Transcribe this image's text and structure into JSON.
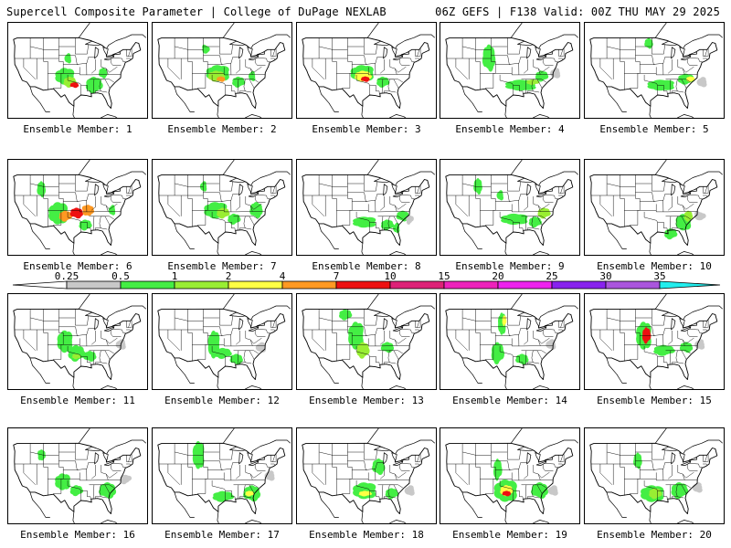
{
  "header": {
    "left": "Supercell Composite Parameter | College of DuPage NEXLAB",
    "right": "06Z GEFS | F138 Valid: 00Z THU MAY 29 2025"
  },
  "colorbar": {
    "levels": [
      "0.25",
      "0.5",
      "1",
      "2",
      "4",
      "7",
      "10",
      "15",
      "20",
      "25",
      "30",
      "35"
    ],
    "colors": [
      "#c8c8c8",
      "#44ee44",
      "#99ee33",
      "#ffff44",
      "#ff9922",
      "#ee1111",
      "#dd2277",
      "#ee22bb",
      "#ee22ee",
      "#8822ee",
      "#aa55dd",
      "#22eeee"
    ]
  },
  "panel_label": "Ensemble Member:",
  "members": [
    {
      "id": "1",
      "caption": "Ensemble Member: 1",
      "blobs": [
        [
          "p",
          -101,
          36,
          5,
          3,
          "#44ee44"
        ],
        [
          "p",
          -99,
          34,
          3,
          2,
          "#99ee33"
        ],
        [
          "p",
          -97,
          33,
          2,
          1,
          "#ee1111"
        ],
        [
          "p",
          -88,
          33,
          4,
          3,
          "#44ee44"
        ],
        [
          "p",
          -84,
          37,
          2,
          2,
          "#44ee44"
        ],
        [
          "s",
          -100,
          42,
          2,
          2,
          "#44ee44"
        ]
      ]
    },
    {
      "id": "2",
      "caption": "Ensemble Member: 2",
      "blobs": [
        [
          "p",
          -97,
          37,
          6,
          3,
          "#44ee44"
        ],
        [
          "p",
          -98,
          36,
          4,
          2,
          "#99ee33"
        ],
        [
          "p",
          -96,
          35,
          2,
          1,
          "#ff9922"
        ],
        [
          "p",
          -88,
          34,
          3,
          2,
          "#44ee44"
        ],
        [
          "s",
          -103,
          45,
          2,
          2,
          "#44ee44"
        ],
        [
          "s",
          -82,
          36,
          2,
          2,
          "#44ee44"
        ]
      ]
    },
    {
      "id": "3",
      "caption": "Ensemble Member: 3",
      "blobs": [
        [
          "p",
          -97,
          37,
          6,
          3,
          "#44ee44"
        ],
        [
          "p",
          -97,
          36,
          4,
          2,
          "#ffff44"
        ],
        [
          "p",
          -96,
          35,
          2,
          1,
          "#ee1111"
        ],
        [
          "p",
          -88,
          34,
          3,
          2,
          "#44ee44"
        ]
      ]
    },
    {
      "id": "4",
      "caption": "Ensemble Member: 4",
      "blobs": [
        [
          "p",
          -90,
          33,
          8,
          2,
          "#44ee44"
        ],
        [
          "p",
          -85,
          34,
          3,
          1,
          "#99ee33"
        ],
        [
          "p",
          -81,
          36,
          3,
          2,
          "#44ee44"
        ],
        [
          "p",
          -105,
          42,
          3,
          5,
          "#44ee44"
        ],
        [
          "s",
          -75,
          37,
          3,
          2,
          "#c8c8c8"
        ]
      ]
    },
    {
      "id": "5",
      "caption": "Ensemble Member: 5",
      "blobs": [
        [
          "p",
          -92,
          33,
          7,
          2,
          "#44ee44"
        ],
        [
          "p",
          -81,
          35,
          4,
          2,
          "#44ee44"
        ],
        [
          "p",
          -79,
          35,
          2,
          1,
          "#ffff44"
        ],
        [
          "p",
          -98,
          47,
          2,
          2,
          "#44ee44"
        ],
        [
          "s",
          -74,
          34,
          3,
          2,
          "#c8c8c8"
        ]
      ]
    },
    {
      "id": "6",
      "caption": "Ensemble Member: 6",
      "blobs": [
        [
          "p",
          -104,
          36,
          5,
          4,
          "#44ee44"
        ],
        [
          "p",
          -101,
          35,
          3,
          2,
          "#ff9922"
        ],
        [
          "p",
          -96,
          36,
          3,
          2,
          "#ee1111"
        ],
        [
          "p",
          -91,
          37,
          3,
          2,
          "#ff9922"
        ],
        [
          "p",
          -92,
          32,
          3,
          2,
          "#44ee44"
        ],
        [
          "p",
          -112,
          44,
          2,
          3,
          "#44ee44"
        ],
        [
          "s",
          -80,
          37,
          2,
          2,
          "#44ee44"
        ]
      ]
    },
    {
      "id": "7",
      "caption": "Ensemble Member: 7",
      "blobs": [
        [
          "p",
          -98,
          37,
          6,
          3,
          "#44ee44"
        ],
        [
          "p",
          -95,
          36,
          3,
          2,
          "#99ee33"
        ],
        [
          "p",
          -90,
          34,
          3,
          2,
          "#44ee44"
        ],
        [
          "p",
          -80,
          37,
          3,
          3,
          "#44ee44"
        ],
        [
          "s",
          -104,
          45,
          2,
          2,
          "#44ee44"
        ]
      ]
    },
    {
      "id": "8",
      "caption": "Ensemble Member: 8",
      "blobs": [
        [
          "p",
          -96,
          33,
          6,
          2,
          "#44ee44"
        ],
        [
          "p",
          -86,
          32,
          3,
          2,
          "#44ee44"
        ],
        [
          "p",
          -79,
          35,
          3,
          2,
          "#44ee44"
        ],
        [
          "s",
          -82,
          31,
          2,
          2,
          "#44ee44"
        ],
        [
          "s",
          -76,
          34,
          2,
          2,
          "#c8c8c8"
        ]
      ]
    },
    {
      "id": "9",
      "caption": "Ensemble Member: 9",
      "blobs": [
        [
          "p",
          -93,
          34,
          7,
          2,
          "#44ee44"
        ],
        [
          "p",
          -84,
          33,
          3,
          2,
          "#44ee44"
        ],
        [
          "p",
          -80,
          36,
          3,
          2,
          "#99ee33"
        ],
        [
          "p",
          -110,
          45,
          2,
          3,
          "#44ee44"
        ],
        [
          "s",
          -100,
          42,
          2,
          2,
          "#44ee44"
        ]
      ]
    },
    {
      "id": "10",
      "caption": "Ensemble Member: 10",
      "blobs": [
        [
          "p",
          -82,
          33,
          4,
          3,
          "#44ee44"
        ],
        [
          "p",
          -88,
          29,
          3,
          2,
          "#44ee44"
        ],
        [
          "p",
          -80,
          35,
          2,
          2,
          "#99ee33"
        ],
        [
          "s",
          -75,
          35,
          3,
          2,
          "#c8c8c8"
        ]
      ]
    },
    {
      "id": "11",
      "caption": "Ensemble Member: 11",
      "blobs": [
        [
          "p",
          -101,
          38,
          4,
          4,
          "#44ee44"
        ],
        [
          "p",
          -96,
          34,
          4,
          3,
          "#44ee44"
        ],
        [
          "p",
          -96,
          33,
          2,
          1,
          "#99ee33"
        ],
        [
          "p",
          -90,
          33,
          3,
          2,
          "#44ee44"
        ],
        [
          "s",
          -76,
          37,
          3,
          2,
          "#c8c8c8"
        ]
      ]
    },
    {
      "id": "12",
      "caption": "Ensemble Member: 12",
      "blobs": [
        [
          "p",
          -99,
          37,
          3,
          5,
          "#44ee44"
        ],
        [
          "p",
          -95,
          34,
          4,
          2,
          "#44ee44"
        ],
        [
          "p",
          -89,
          32,
          3,
          2,
          "#44ee44"
        ],
        [
          "s",
          -78,
          36,
          3,
          2,
          "#c8c8c8"
        ]
      ]
    },
    {
      "id": "13",
      "caption": "Ensemble Member: 13",
      "blobs": [
        [
          "p",
          -100,
          40,
          4,
          5,
          "#44ee44"
        ],
        [
          "p",
          -97,
          35,
          3,
          3,
          "#99ee33"
        ],
        [
          "p",
          -105,
          47,
          3,
          2,
          "#44ee44"
        ],
        [
          "p",
          -86,
          36,
          3,
          2,
          "#44ee44"
        ]
      ]
    },
    {
      "id": "14",
      "caption": "Ensemble Member: 14",
      "blobs": [
        [
          "p",
          -99,
          44,
          2,
          4,
          "#44ee44"
        ],
        [
          "p",
          -98,
          45,
          1,
          2,
          "#ffff44"
        ],
        [
          "p",
          -101,
          34,
          3,
          4,
          "#44ee44"
        ],
        [
          "p",
          -90,
          32,
          3,
          2,
          "#44ee44"
        ],
        [
          "s",
          -77,
          37,
          3,
          2,
          "#c8c8c8"
        ]
      ]
    },
    {
      "id": "15",
      "caption": "Ensemble Member: 15",
      "blobs": [
        [
          "p",
          -100,
          40,
          4,
          5,
          "#44ee44"
        ],
        [
          "p",
          -99,
          40,
          2,
          3,
          "#ee1111"
        ],
        [
          "p",
          -91,
          35,
          5,
          2,
          "#44ee44"
        ],
        [
          "p",
          -81,
          36,
          3,
          2,
          "#44ee44"
        ],
        [
          "s",
          -75,
          37,
          3,
          2,
          "#c8c8c8"
        ]
      ]
    },
    {
      "id": "16",
      "caption": "Ensemble Member: 16",
      "blobs": [
        [
          "p",
          -102,
          36,
          4,
          3,
          "#44ee44"
        ],
        [
          "p",
          -96,
          33,
          3,
          2,
          "#44ee44"
        ],
        [
          "p",
          -82,
          33,
          4,
          3,
          "#44ee44"
        ],
        [
          "p",
          -112,
          45,
          2,
          2,
          "#44ee44"
        ],
        [
          "s",
          -74,
          37,
          3,
          2,
          "#c8c8c8"
        ]
      ]
    },
    {
      "id": "17",
      "caption": "Ensemble Member: 17",
      "blobs": [
        [
          "p",
          -106,
          45,
          3,
          5,
          "#44ee44"
        ],
        [
          "p",
          -95,
          31,
          5,
          2,
          "#44ee44"
        ],
        [
          "p",
          -82,
          32,
          4,
          3,
          "#44ee44"
        ],
        [
          "p",
          -83,
          32,
          2,
          1,
          "#ffff44"
        ],
        [
          "s",
          -74,
          38,
          3,
          2,
          "#c8c8c8"
        ]
      ]
    },
    {
      "id": "18",
      "caption": "Ensemble Member: 18",
      "blobs": [
        [
          "p",
          -96,
          33,
          6,
          3,
          "#44ee44"
        ],
        [
          "p",
          -96,
          32,
          3,
          1,
          "#ffff44"
        ],
        [
          "p",
          -84,
          32,
          3,
          2,
          "#44ee44"
        ],
        [
          "p",
          -90,
          41,
          3,
          3,
          "#44ee44"
        ],
        [
          "s",
          -76,
          33,
          3,
          2,
          "#c8c8c8"
        ]
      ]
    },
    {
      "id": "19",
      "caption": "Ensemble Member: 19",
      "blobs": [
        [
          "p",
          -97,
          33,
          6,
          4,
          "#44ee44"
        ],
        [
          "p",
          -97,
          33,
          3,
          2,
          "#ffff44"
        ],
        [
          "p",
          -97,
          32,
          2,
          1,
          "#ee1111"
        ],
        [
          "p",
          -101,
          40,
          2,
          4,
          "#44ee44"
        ],
        [
          "p",
          -82,
          33,
          4,
          3,
          "#44ee44"
        ],
        [
          "s",
          -76,
          33,
          3,
          2,
          "#c8c8c8"
        ]
      ]
    },
    {
      "id": "20",
      "caption": "Ensemble Member: 20",
      "blobs": [
        [
          "p",
          -96,
          32,
          6,
          3,
          "#44ee44"
        ],
        [
          "p",
          -95,
          32,
          3,
          2,
          "#99ee33"
        ],
        [
          "p",
          -84,
          33,
          4,
          3,
          "#44ee44"
        ],
        [
          "p",
          -103,
          43,
          2,
          3,
          "#44ee44"
        ],
        [
          "s",
          -76,
          34,
          3,
          2,
          "#c8c8c8"
        ]
      ]
    }
  ]
}
